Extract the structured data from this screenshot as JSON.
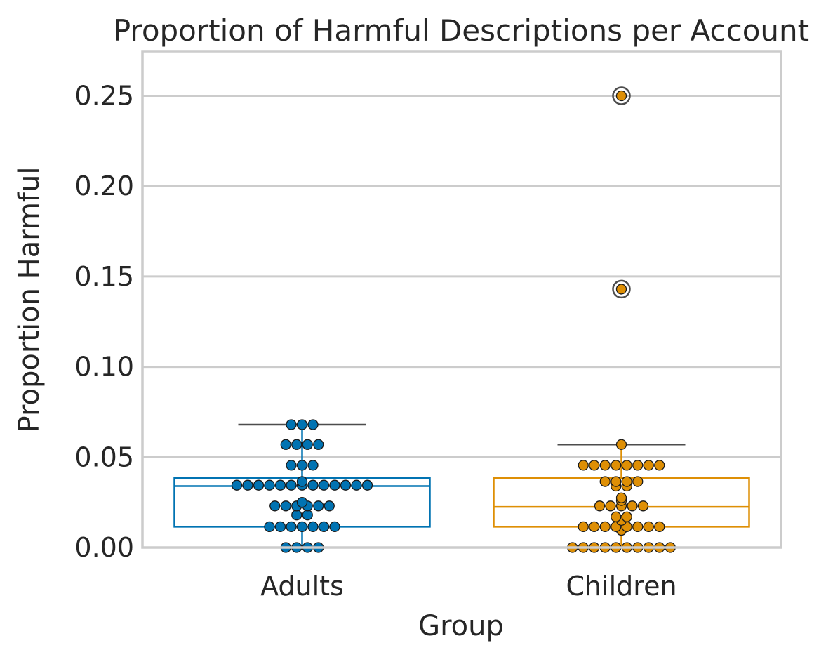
{
  "chart_data": {
    "type": "box",
    "title": "Proportion of Harmful Descriptions per Account",
    "xlabel": "Group",
    "ylabel": "Proportion Harmful",
    "categories": [
      "Adults",
      "Children"
    ],
    "ylim": [
      0,
      0.275
    ],
    "yticks": [
      0.0,
      0.05,
      0.1,
      0.15,
      0.2,
      0.25
    ],
    "ytick_labels": [
      "0.00",
      "0.05",
      "0.10",
      "0.15",
      "0.20",
      "0.25"
    ],
    "grid": "horizontal",
    "series": [
      {
        "name": "Adults",
        "color": "#0173b2",
        "box": {
          "whisker_low": 0.0,
          "q1": 0.0115,
          "median": 0.034,
          "q3": 0.0385,
          "whisker_high": 0.068
        },
        "outliers": [],
        "points": [
          0,
          0,
          0,
          0,
          0.0115,
          0.0115,
          0.0115,
          0.0115,
          0.0115,
          0.0115,
          0.0115,
          0.018,
          0.018,
          0.023,
          0.023,
          0.023,
          0.023,
          0.023,
          0.023,
          0.025,
          0.0345,
          0.0345,
          0.0345,
          0.0345,
          0.0345,
          0.0345,
          0.0345,
          0.0345,
          0.0345,
          0.0345,
          0.0345,
          0.0345,
          0.035,
          0.0365,
          0.0455,
          0.0455,
          0.0455,
          0.057,
          0.057,
          0.057,
          0.057,
          0.068,
          0.068,
          0.068
        ]
      },
      {
        "name": "Children",
        "color": "#de8f05",
        "box": {
          "whisker_low": 0.0,
          "q1": 0.0115,
          "median": 0.0225,
          "q3": 0.0385,
          "whisker_high": 0.057
        },
        "outliers": [
          0.143,
          0.25
        ],
        "points": [
          0,
          0,
          0,
          0,
          0,
          0,
          0,
          0,
          0,
          0,
          0.0095,
          0.0115,
          0.0115,
          0.0115,
          0.0115,
          0.0115,
          0.0115,
          0.0115,
          0.0115,
          0.015,
          0.017,
          0.017,
          0.023,
          0.023,
          0.023,
          0.023,
          0.023,
          0.026,
          0.0275,
          0.034,
          0.034,
          0.0365,
          0.0365,
          0.0365,
          0.0365,
          0.0455,
          0.0455,
          0.0455,
          0.0455,
          0.0455,
          0.0455,
          0.0455,
          0.0455,
          0.057,
          0.143,
          0.25
        ]
      }
    ]
  }
}
